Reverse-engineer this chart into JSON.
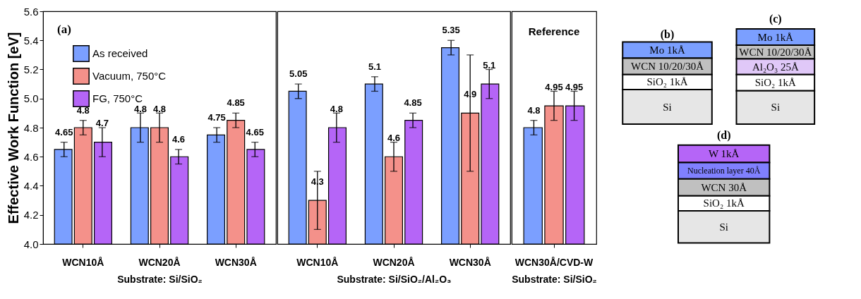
{
  "chart_data": [
    {
      "type": "bar",
      "categories": [
        "WCN10Å",
        "WCN20Å",
        "WCN30Å"
      ],
      "xlabel": "Substrate: Si/SiO₂",
      "ylabel": "Effective Work Function [eV]",
      "ylim": [
        4.0,
        5.6
      ],
      "yticks": [
        {
          "value": 4.0,
          "label": "4.0"
        },
        {
          "value": 4.2,
          "label": "4.2"
        },
        {
          "value": 4.4,
          "label": "4.4"
        },
        {
          "value": 4.6,
          "label": "4.6"
        },
        {
          "value": 4.8,
          "label": "4.8"
        },
        {
          "value": 5.0,
          "label": "5.0"
        },
        {
          "value": 5.2,
          "label": "5.2"
        },
        {
          "value": 5.4,
          "label": "5.4"
        },
        {
          "value": 5.6,
          "label": "5.6"
        }
      ],
      "legend": "top left",
      "data_labels": true,
      "grid": false,
      "annotations": [
        "(a)"
      ],
      "series": [
        {
          "name": "As received",
          "color": "#7b9fff",
          "values": [
            4.65,
            4.8,
            4.75
          ],
          "errors": [
            0.05,
            0.1,
            0.05
          ]
        },
        {
          "name": "Vacuum, 750°C",
          "color": "#f4918a",
          "values": [
            4.8,
            4.8,
            4.85
          ],
          "errors": [
            0.05,
            0.1,
            0.05
          ]
        },
        {
          "name": "FG, 750°C",
          "color": "#b565f7",
          "values": [
            4.7,
            4.6,
            4.65
          ],
          "errors": [
            0.1,
            0.05,
            0.05
          ]
        }
      ]
    },
    {
      "type": "bar",
      "categories": [
        "WCN10Å",
        "WCN20Å",
        "WCN30Å"
      ],
      "xlabel": "Substrate: Si/SiO₂/Al₂O₃",
      "ylim": [
        4.0,
        5.6
      ],
      "tick_labels": "x",
      "data_labels": true,
      "grid": false,
      "series": [
        {
          "color": "#7b9fff",
          "values": [
            5.05,
            5.1,
            5.35
          ],
          "errors": [
            0.05,
            0.05,
            0.05
          ]
        },
        {
          "color": "#f4918a",
          "values": [
            4.3,
            4.6,
            4.9
          ],
          "errors": [
            0.2,
            0.1,
            0.4
          ]
        },
        {
          "color": "#b565f7",
          "values": [
            4.8,
            4.85,
            5.1
          ],
          "errors": [
            0.1,
            0.05,
            0.1
          ]
        }
      ]
    },
    {
      "type": "bar",
      "categories": [
        "WCN30Å/CVD-W"
      ],
      "xlabel": "Substrate: Si/SiO₂",
      "ylim": [
        4.0,
        5.6
      ],
      "tick_labels": "x",
      "data_labels": true,
      "grid": false,
      "annotations": [
        "Reference"
      ],
      "series": [
        {
          "color": "#7b9fff",
          "values": [
            4.8
          ],
          "errors": [
            0.05
          ]
        },
        {
          "color": "#f4918a",
          "values": [
            4.95
          ],
          "errors": [
            0.1
          ]
        },
        {
          "color": "#b565f7",
          "values": [
            4.95
          ],
          "errors": [
            0.1
          ]
        }
      ]
    },
    {
      "type": "other",
      "annotations": [
        "(b)",
        "Mo 1kÅ",
        "WCN 10/20/30Å",
        "SiO₂ 1kÅ",
        "Si",
        "(c)",
        "Mo 1kÅ",
        "WCN 10/20/30Å",
        "Al₂O₃ 25Å",
        "SiO₂ 1kÅ",
        "Si",
        "(d)",
        "W 1kÅ",
        "Nucleation layer 40Å",
        "WCN 30Å",
        "SiO₂ 1kÅ",
        "Si"
      ]
    }
  ]
}
